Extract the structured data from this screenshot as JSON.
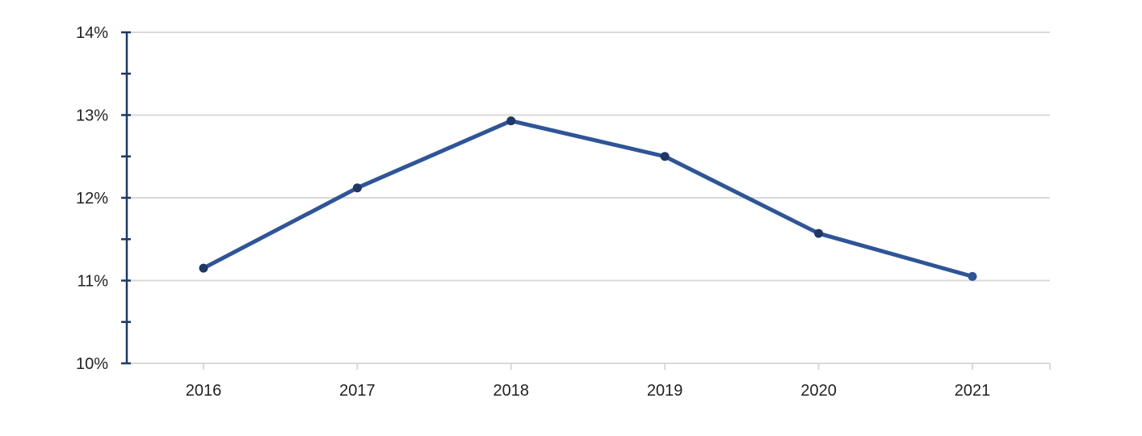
{
  "chart_data": {
    "type": "line",
    "title": "",
    "xlabel": "",
    "ylabel": "",
    "categories": [
      "2016",
      "2017",
      "2018",
      "2019",
      "2020",
      "2021"
    ],
    "series": [
      {
        "values": [
          11.15,
          12.12,
          12.93,
          12.5,
          11.57,
          11.05
        ]
      }
    ],
    "ylim": [
      10,
      14
    ],
    "y_ticks": [
      10,
      11,
      12,
      13,
      14
    ],
    "y_tick_labels": [
      "10%",
      "11%",
      "12%",
      "13%",
      "14%"
    ],
    "y_minor_step": 0.5,
    "grid": true,
    "legend": "none",
    "colors": {
      "line": "#2F5597",
      "marker": "#1F3864",
      "axis": "#1F3864",
      "grid": "#D9D9D9",
      "text": "#222222"
    }
  }
}
